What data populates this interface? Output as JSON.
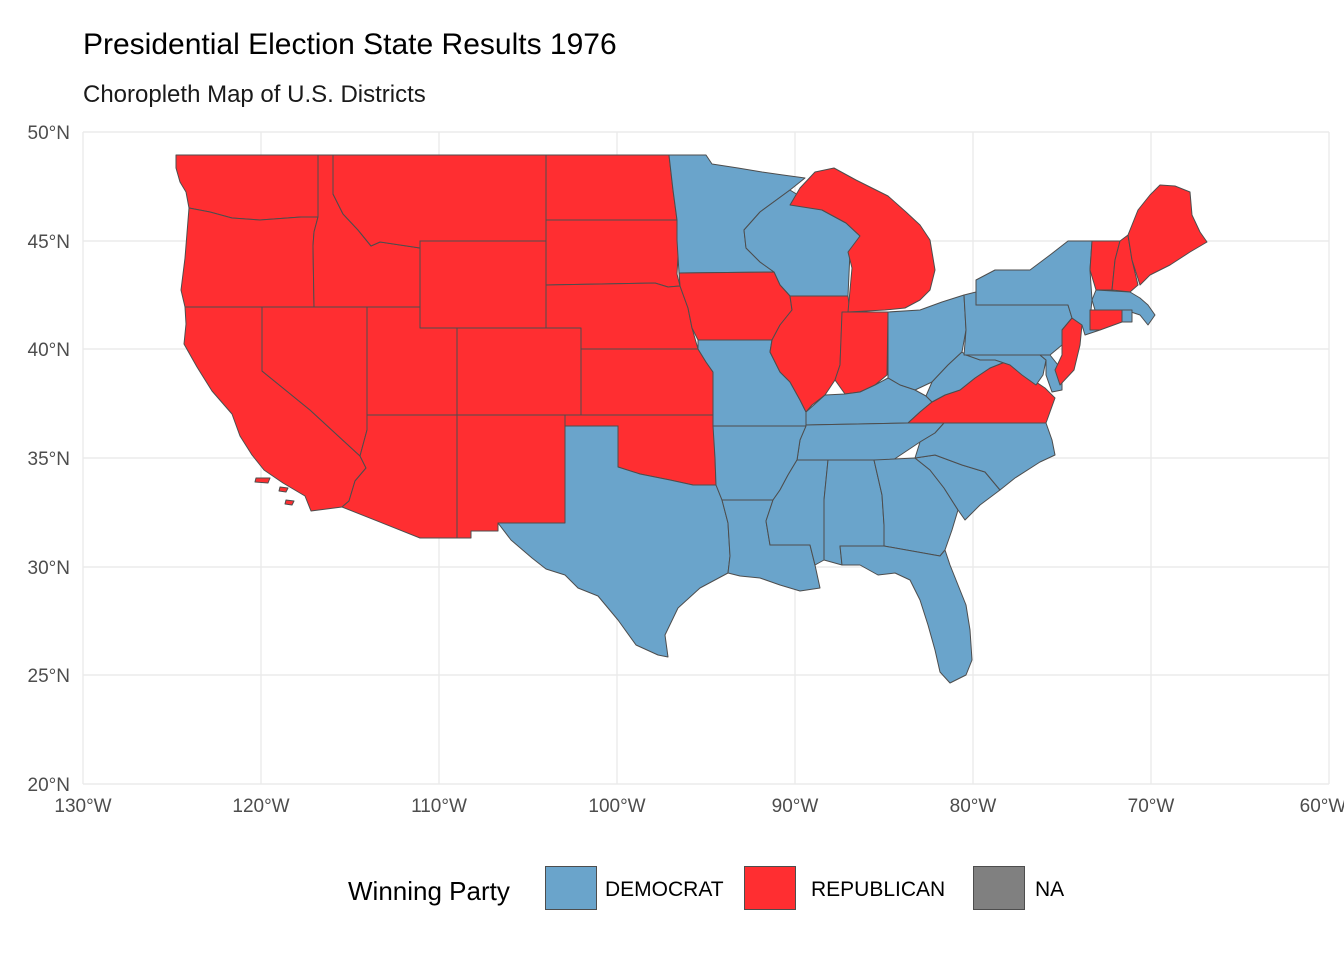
{
  "title": "Presidential Election State Results 1976",
  "subtitle": "Choropleth Map of U.S. Districts",
  "axes": {
    "y_ticks": [
      "50°N",
      "45°N",
      "40°N",
      "35°N",
      "30°N",
      "25°N",
      "20°N"
    ],
    "x_ticks": [
      "130°W",
      "120°W",
      "110°W",
      "100°W",
      "90°W",
      "80°W",
      "70°W",
      "60°W"
    ]
  },
  "legend": {
    "title": "Winning Party",
    "items": [
      {
        "label": "DEMOCRAT",
        "color": "#6aa4cb"
      },
      {
        "label": "REPUBLICAN",
        "color": "#ff2e31"
      },
      {
        "label": "NA",
        "color": "#808080"
      }
    ]
  },
  "colors": {
    "democrat": "#6aa4cb",
    "republican": "#ff2e31",
    "border": "#4d4d4d",
    "grid": "#ebebeb"
  },
  "map_data": {
    "projection": "lon/lat",
    "xlim": [
      -130,
      -60
    ],
    "ylim": [
      20,
      50
    ],
    "winners": {
      "Washington": "REPUBLICAN",
      "Oregon": "REPUBLICAN",
      "California": "REPUBLICAN",
      "Idaho": "REPUBLICAN",
      "Nevada": "REPUBLICAN",
      "Montana": "REPUBLICAN",
      "Wyoming": "REPUBLICAN",
      "Utah": "REPUBLICAN",
      "Arizona": "REPUBLICAN",
      "Colorado": "REPUBLICAN",
      "New Mexico": "REPUBLICAN",
      "North Dakota": "REPUBLICAN",
      "South Dakota": "REPUBLICAN",
      "Nebraska": "REPUBLICAN",
      "Kansas": "REPUBLICAN",
      "Oklahoma": "REPUBLICAN",
      "Iowa": "REPUBLICAN",
      "Illinois": "REPUBLICAN",
      "Indiana": "REPUBLICAN",
      "Michigan": "REPUBLICAN",
      "Virginia": "REPUBLICAN",
      "New Jersey": "REPUBLICAN",
      "Connecticut": "REPUBLICAN",
      "Vermont": "REPUBLICAN",
      "New Hampshire": "REPUBLICAN",
      "Maine": "REPUBLICAN",
      "Texas": "DEMOCRAT",
      "Minnesota": "DEMOCRAT",
      "Wisconsin": "DEMOCRAT",
      "Missouri": "DEMOCRAT",
      "Arkansas": "DEMOCRAT",
      "Louisiana": "DEMOCRAT",
      "Mississippi": "DEMOCRAT",
      "Alabama": "DEMOCRAT",
      "Georgia": "DEMOCRAT",
      "Florida": "DEMOCRAT",
      "South Carolina": "DEMOCRAT",
      "North Carolina": "DEMOCRAT",
      "Tennessee": "DEMOCRAT",
      "Kentucky": "DEMOCRAT",
      "Ohio": "DEMOCRAT",
      "West Virginia": "DEMOCRAT",
      "Pennsylvania": "DEMOCRAT",
      "New York": "DEMOCRAT",
      "Maryland": "DEMOCRAT",
      "Delaware": "DEMOCRAT",
      "Massachusetts": "DEMOCRAT",
      "Rhode Island": "DEMOCRAT"
    }
  }
}
